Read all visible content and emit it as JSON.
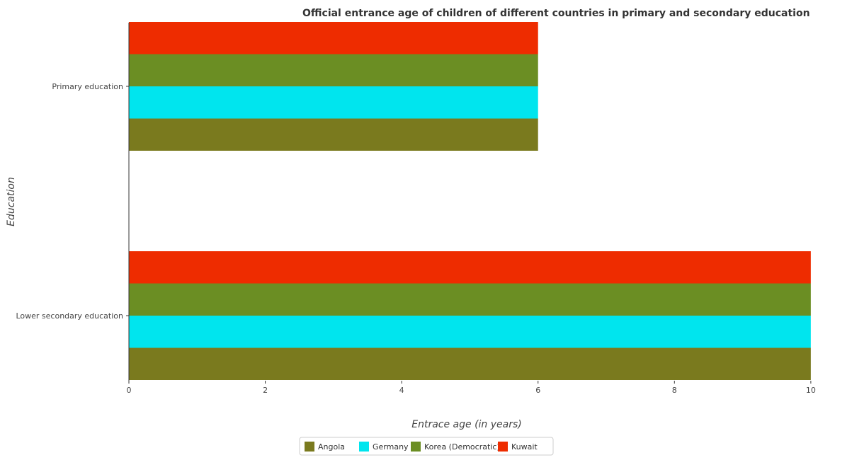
{
  "chart_data": {
    "type": "bar",
    "orientation": "horizontal",
    "title": "Official entrance age of children of different countries in primary and secondary education",
    "xlabel": "Entrace age (in  years)",
    "ylabel": "Education",
    "categories": [
      "Lower secondary education",
      "Primary education"
    ],
    "series": [
      {
        "name": "Angola",
        "color": "#7a7a1e",
        "values": [
          10,
          6
        ]
      },
      {
        "name": "Germany",
        "color": "#00e5ee",
        "values": [
          10,
          6
        ]
      },
      {
        "name": "Korea (Democratic)",
        "color": "#6b8e23",
        "values": [
          10,
          6
        ]
      },
      {
        "name": "Kuwait",
        "color": "#ee2c00",
        "values": [
          10,
          6
        ]
      }
    ],
    "xlim": [
      0,
      10.5
    ],
    "xticks": [
      0,
      2,
      4,
      6,
      8,
      10
    ],
    "xtick_labels": [
      "0",
      "2",
      "4",
      "6",
      "8",
      "10"
    ],
    "grid": false,
    "legend_position": "bottom-center"
  }
}
